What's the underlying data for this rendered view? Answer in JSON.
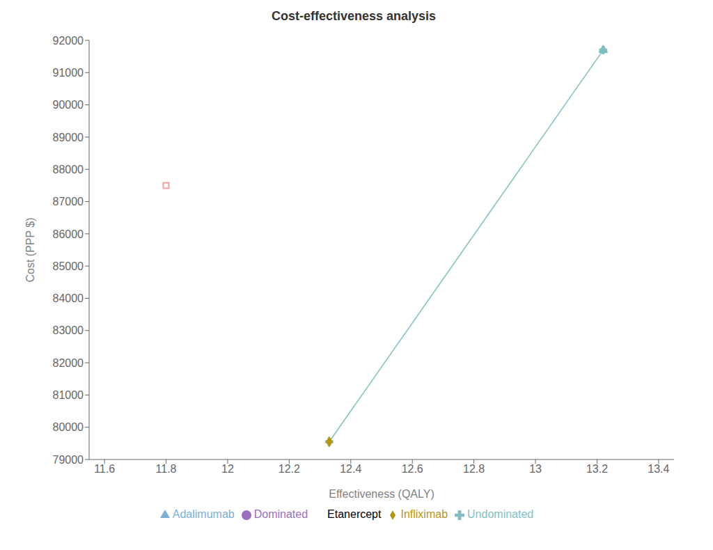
{
  "chart_data": {
    "type": "scatter",
    "title": "Cost-effectiveness analysis",
    "xlabel": "Effectiveness (QALY)",
    "ylabel": "Cost (PPP $)",
    "series": [
      {
        "name": "Adalimumab",
        "color": "#7bafd4",
        "marker": "triangle",
        "x": [
          13.22
        ],
        "values": [
          91700
        ]
      },
      {
        "name": "Dominated",
        "color": "#9b6dbf",
        "marker": "circle",
        "x": [],
        "values": []
      },
      {
        "name": "Etanercept",
        "color": "#f4a0a0",
        "marker": "square-open",
        "x": [
          11.8
        ],
        "values": [
          87500
        ]
      },
      {
        "name": "Undominated",
        "type": "line",
        "color": "#7fbfbf",
        "marker": "cross",
        "x": [
          12.33,
          13.22
        ],
        "values": [
          79550,
          91700
        ]
      },
      {
        "name": "Infliximab",
        "color": "#b8960c",
        "marker": "diamond",
        "x": [
          12.33
        ],
        "values": [
          79550
        ]
      }
    ],
    "xlim": [
      11.55,
      13.45
    ],
    "ylim": [
      79000,
      92000
    ],
    "xticks": [
      11.6,
      11.8,
      12,
      12.2,
      12.4,
      12.6,
      12.8,
      13,
      13.2,
      13.4
    ],
    "yticks": [
      79000,
      80000,
      81000,
      82000,
      83000,
      84000,
      85000,
      86000,
      87000,
      88000,
      89000,
      90000,
      91000,
      92000
    ],
    "grid": false,
    "legend": "bottom"
  }
}
